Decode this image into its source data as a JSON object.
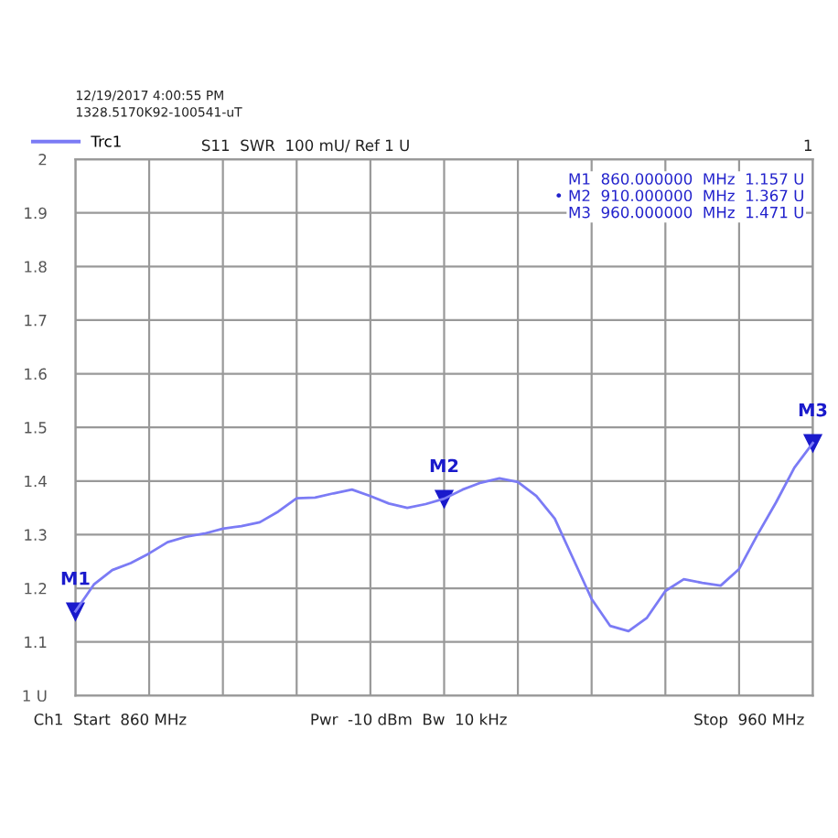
{
  "chart_data": {
    "type": "line",
    "categories": [
      null,
      null,
      null,
      null,
      null,
      null,
      null,
      null,
      null,
      null,
      null,
      null,
      null,
      null,
      null,
      null,
      null,
      null,
      null,
      null,
      null,
      null,
      null,
      null,
      null,
      null,
      null,
      null,
      null,
      null,
      null,
      null,
      null,
      null,
      null,
      null,
      null,
      null,
      null,
      null,
      null
    ],
    "ylim": [
      1,
      2
    ],
    "yticks": [
      {
        "value": 1,
        "label": "1 U"
      },
      1.1,
      1.2,
      1.3,
      1.4,
      1.5,
      1.6,
      1.7,
      1.8,
      1.9,
      2
    ],
    "grid": true,
    "legend": "top left",
    "marker": "none",
    "line_style": "solid",
    "series": [
      {
        "name": "Trc1",
        "color": "#7b7bf5",
        "values": [
          1.157,
          1.207,
          1.234,
          1.247,
          1.265,
          1.286,
          1.296,
          1.302,
          1.311,
          1.316,
          1.323,
          1.343,
          1.368,
          1.369,
          1.377,
          1.384,
          1.372,
          1.358,
          1.35,
          1.357,
          1.367,
          1.384,
          1.397,
          1.405,
          1.398,
          1.372,
          1.33,
          1.255,
          1.18,
          1.13,
          1.12,
          1.145,
          1.195,
          1.217,
          1.21,
          1.205,
          1.236,
          1.3,
          1.36,
          1.425,
          1.471
        ],
        "value_labels": [
          "M1",
          null,
          null,
          null,
          null,
          null,
          null,
          null,
          null,
          null,
          null,
          null,
          null,
          null,
          null,
          null,
          null,
          null,
          null,
          null,
          "M2",
          null,
          null,
          null,
          null,
          null,
          null,
          null,
          null,
          null,
          null,
          null,
          null,
          null,
          null,
          null,
          null,
          null,
          null,
          null,
          "M3"
        ]
      }
    ],
    "annotations": [
      "12/19/2017 4:00:55 PM",
      "1328.5170K92-100541-uT",
      "S11  SWR  100 mU/ Ref 1 U",
      "1",
      "M1  860.000000  MHz  1.157 U",
      "• M2  910.000000  MHz  1.367 U",
      "M3  960.000000  MHz  1.471 U",
      "Ch1  Start  860 MHz",
      "Pwr  -10 dBm  Bw  10 kHz",
      "Stop  960 MHz"
    ]
  }
}
